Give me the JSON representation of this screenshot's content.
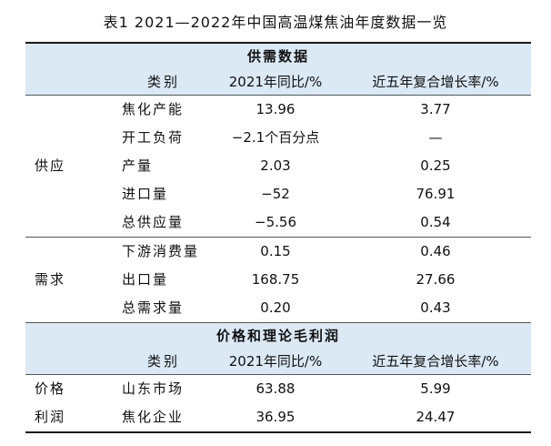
{
  "title": "表1 2021—2022年中国高温煤焦油年度数据一览",
  "sections": {
    "supply_demand": {
      "title": "供需数据",
      "headers": {
        "category": "类别",
        "yoy": "2021年同比/%",
        "cagr": "近五年复合增长率/%"
      },
      "supply": {
        "label": "供应",
        "rows": [
          {
            "name": "焦化产能",
            "yoy": "13.96",
            "cagr": "3.77"
          },
          {
            "name": "开工负荷",
            "yoy": "−2.1个百分点",
            "cagr": "—"
          },
          {
            "name": "产量",
            "yoy": "2.03",
            "cagr": "0.25"
          },
          {
            "name": "进口量",
            "yoy": "−52",
            "cagr": "76.91"
          },
          {
            "name": "总供应量",
            "yoy": "−5.56",
            "cagr": "0.54"
          }
        ]
      },
      "demand": {
        "label": "需求",
        "rows": [
          {
            "name": "下游消费量",
            "yoy": "0.15",
            "cagr": "0.46"
          },
          {
            "name": "出口量",
            "yoy": "168.75",
            "cagr": "27.66"
          },
          {
            "name": "总需求量",
            "yoy": "0.20",
            "cagr": "0.43"
          }
        ]
      }
    },
    "price_profit": {
      "title": "价格和理论毛利润",
      "headers": {
        "category": "类别",
        "yoy": "2021年同比/%",
        "cagr": "近五年复合增长率/%"
      },
      "rows": [
        {
          "group": "价格",
          "name": "山东市场",
          "yoy": "63.88",
          "cagr": "5.99"
        },
        {
          "group": "利润",
          "name": "焦化企业",
          "yoy": "36.95",
          "cagr": "24.47"
        }
      ]
    }
  }
}
